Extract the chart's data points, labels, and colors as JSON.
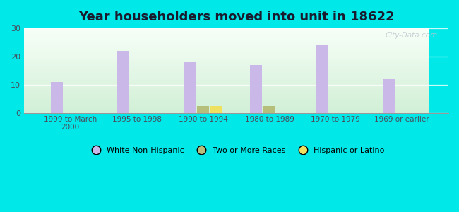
{
  "title": "Year householders moved into unit in 18622",
  "categories": [
    "1999 to March\n2000",
    "1995 to 1998",
    "1990 to 1994",
    "1980 to 1989",
    "1970 to 1979",
    "1969 or earlier"
  ],
  "series": {
    "White Non-Hispanic": [
      11,
      22,
      18,
      17,
      24,
      12
    ],
    "Two or More Races": [
      0,
      0,
      2.5,
      2.5,
      0,
      0
    ],
    "Hispanic or Latino": [
      0,
      0,
      2.5,
      0,
      0,
      0
    ]
  },
  "colors": {
    "White Non-Hispanic": "#c9b8e8",
    "Two or More Races": "#b5be7a",
    "Hispanic or Latino": "#f0e060"
  },
  "ylim": [
    0,
    30
  ],
  "yticks": [
    0,
    10,
    20,
    30
  ],
  "background_color": "#00e8e8",
  "bar_width": 0.18,
  "legend_labels": [
    "White Non-Hispanic",
    "Two or More Races",
    "Hispanic or Latino"
  ],
  "watermark": "City-Data.com"
}
